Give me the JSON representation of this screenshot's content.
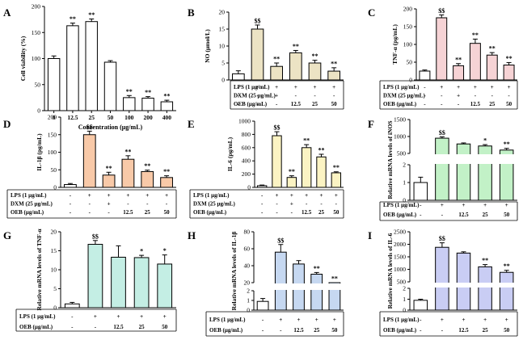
{
  "colors": {
    "A": "#ffffff",
    "B": "#ece3c4",
    "C": "#f6d3d5",
    "D": "#f8c9a8",
    "E": "#fbf3c3",
    "F": "#c2f1c7",
    "G": "#c4eee4",
    "H": "#c6d8f1",
    "I": "#c9cdf4",
    "first_bar": "#ffffff"
  },
  "chart_data": [
    {
      "panel": "A",
      "type": "bar",
      "ylabel": "Cell viability (%)",
      "xlabel": "Concentration (μg/mL)",
      "ylim": [
        0,
        200
      ],
      "yticks": [
        0,
        50,
        100,
        150,
        200
      ],
      "categories": [
        "0",
        "12.5",
        "25",
        "50",
        "100",
        "200",
        "400"
      ],
      "values": [
        100,
        163,
        171,
        93,
        25,
        24,
        17
      ],
      "errors": [
        5,
        5,
        5,
        3,
        4,
        3,
        3
      ],
      "labels": [
        "",
        "**",
        "**",
        "",
        "**",
        "**",
        "**"
      ]
    },
    {
      "panel": "B",
      "type": "bar",
      "ylabel": "NO (μmol/L)",
      "ylim": [
        0,
        20
      ],
      "yticks": [
        0,
        5,
        10,
        15,
        20
      ],
      "values": [
        1.8,
        15,
        4,
        8,
        5,
        2.6
      ],
      "errors": [
        0.9,
        1.2,
        1.0,
        0.7,
        0.8,
        1.0
      ],
      "labels": [
        "",
        "$$",
        "**",
        "**",
        "**",
        "**"
      ],
      "conditions": [
        {
          "name": "LPS (1 μg/mL)",
          "values": [
            "-",
            "+",
            "+",
            "+",
            "+",
            "+"
          ]
        },
        {
          "name": "DXM (25 μg/mL)",
          "values": [
            "-",
            "-",
            "+",
            "-",
            "-",
            "-"
          ]
        },
        {
          "name": "OEB (μg/mL)",
          "values": [
            "-",
            "-",
            "-",
            "12.5",
            "25",
            "50"
          ]
        }
      ]
    },
    {
      "panel": "C",
      "type": "bar",
      "ylabel": "TNF-α (pg/mL)",
      "ylim": [
        0,
        200
      ],
      "yticks": [
        0,
        50,
        100,
        150,
        200
      ],
      "values": [
        25,
        175,
        40,
        103,
        70,
        42
      ],
      "errors": [
        3,
        8,
        6,
        12,
        7,
        7
      ],
      "labels": [
        "",
        "$$",
        "**",
        "**",
        "**",
        "**"
      ],
      "conditions": [
        {
          "name": "LPS (1 μg/mL)",
          "values": [
            "-",
            "+",
            "+",
            "+",
            "+",
            "+"
          ]
        },
        {
          "name": "DXM (25 μg/mL)",
          "values": [
            "-",
            "-",
            "+",
            "-",
            "-",
            "-"
          ]
        },
        {
          "name": "OEB (μg/mL)",
          "values": [
            "-",
            "-",
            "-",
            "12.5",
            "25",
            "50"
          ]
        }
      ]
    },
    {
      "panel": "D",
      "type": "bar",
      "ylabel": "IL-1β (pg/mL)",
      "ylim": [
        0,
        200
      ],
      "yticks": [
        0,
        50,
        100,
        150,
        200
      ],
      "values": [
        8,
        150,
        35,
        80,
        45,
        28
      ],
      "errors": [
        3,
        10,
        8,
        10,
        4,
        5
      ],
      "labels": [
        "",
        "$$",
        "**",
        "**",
        "**",
        "**"
      ],
      "conditions": [
        {
          "name": "LPS (1 μg/mL)",
          "values": [
            "-",
            "+",
            "+",
            "+",
            "+",
            "+"
          ]
        },
        {
          "name": "DXM (25 μg/mL)",
          "values": [
            "-",
            "-",
            "+",
            "-",
            "-",
            "-"
          ]
        },
        {
          "name": "OEB (μg/mL)",
          "values": [
            "-",
            "-",
            "-",
            "12.5",
            "25",
            "50"
          ]
        }
      ]
    },
    {
      "panel": "E",
      "type": "bar",
      "ylabel": "IL-6 (pg/mL)",
      "ylim": [
        0,
        1000
      ],
      "yticks": [
        0,
        200,
        400,
        600,
        800,
        1000
      ],
      "values": [
        25,
        780,
        150,
        600,
        460,
        220
      ],
      "errors": [
        10,
        60,
        25,
        45,
        40,
        15
      ],
      "labels": [
        "",
        "$$",
        "**",
        "**",
        "**",
        "**"
      ],
      "conditions": [
        {
          "name": "LPS (1 μg/mL)",
          "values": [
            "-",
            "+",
            "+",
            "+",
            "+",
            "+"
          ]
        },
        {
          "name": "DXM (25 μg/mL)",
          "values": [
            "-",
            "-",
            "+",
            "-",
            "-",
            "-"
          ]
        },
        {
          "name": "OEB (μg/mL)",
          "values": [
            "-",
            "-",
            "-",
            "12.5",
            "25",
            "50"
          ]
        }
      ]
    },
    {
      "panel": "F",
      "type": "bar",
      "ylabel": "Relative mRNA levels of iNOS",
      "break_axis": {
        "low": [
          0,
          2
        ],
        "high": [
          500,
          1500
        ],
        "low_ticks": [
          0,
          1,
          2
        ],
        "high_ticks": [
          500,
          1000,
          1500
        ]
      },
      "values": [
        1,
        950,
        780,
        720,
        600
      ],
      "errors": [
        0.3,
        40,
        30,
        40,
        50
      ],
      "labels": [
        "",
        "$$",
        "",
        "*",
        "**"
      ],
      "conditions": [
        {
          "name": "LPS (1 μg/mL)",
          "values": [
            "-",
            "+",
            "+",
            "+",
            "+"
          ]
        },
        {
          "name": "OEB (μg/mL)",
          "values": [
            "-",
            "-",
            "12.5",
            "25",
            "50"
          ]
        }
      ]
    },
    {
      "panel": "G",
      "type": "bar",
      "ylabel": "Relative mRNA levels of TNF-α",
      "ylim": [
        0,
        20
      ],
      "yticks": [
        0,
        5,
        10,
        15,
        20
      ],
      "values": [
        1,
        16.7,
        13.3,
        13.2,
        11.5
      ],
      "errors": [
        0.4,
        1.0,
        3.0,
        0.6,
        2.4
      ],
      "labels": [
        "",
        "$$",
        "",
        "*",
        "*"
      ],
      "conditions": [
        {
          "name": "LPS (1 μg/mL)",
          "values": [
            "-",
            "+",
            "+",
            "+",
            "+"
          ]
        },
        {
          "name": "OEB (μg/mL)",
          "values": [
            "-",
            "-",
            "12.5",
            "25",
            "50"
          ]
        }
      ]
    },
    {
      "panel": "H",
      "type": "bar",
      "ylabel": "Relative mRNA levels of IL-1β",
      "break_axis": {
        "low": [
          0,
          2
        ],
        "high": [
          20,
          80
        ],
        "low_ticks": [
          0,
          1,
          2
        ],
        "high_ticks": [
          20,
          40,
          60,
          80
        ]
      },
      "values": [
        0.9,
        56,
        42,
        30,
        16
      ],
      "errors": [
        0.3,
        9,
        4,
        2,
        4
      ],
      "labels": [
        "",
        "$$",
        "",
        "**",
        "**"
      ],
      "conditions": [
        {
          "name": "LPS (1 μg/mL)",
          "values": [
            "-",
            "+",
            "+",
            "+",
            "+"
          ]
        },
        {
          "name": "OEB (μg/mL)",
          "values": [
            "-",
            "-",
            "12.5",
            "25",
            "50"
          ]
        }
      ]
    },
    {
      "panel": "I",
      "type": "bar",
      "ylabel": "Relative mRNA levels of IL-6",
      "break_axis": {
        "low": [
          0,
          2
        ],
        "high": [
          500,
          2500
        ],
        "low_ticks": [
          0,
          1,
          2
        ],
        "high_ticks": [
          500,
          1000,
          1500,
          2000,
          2500
        ]
      },
      "values": [
        0.9,
        1880,
        1650,
        1100,
        880
      ],
      "errors": [
        0.1,
        180,
        50,
        90,
        80
      ],
      "labels": [
        "",
        "$$",
        "",
        "**",
        "**"
      ],
      "conditions": [
        {
          "name": "LPS (1 μg/mL)",
          "values": [
            "-",
            "+",
            "+",
            "+",
            "+"
          ]
        },
        {
          "name": "OEB (μg/mL)",
          "values": [
            "-",
            "-",
            "12.5",
            "25",
            "50"
          ]
        }
      ]
    }
  ]
}
